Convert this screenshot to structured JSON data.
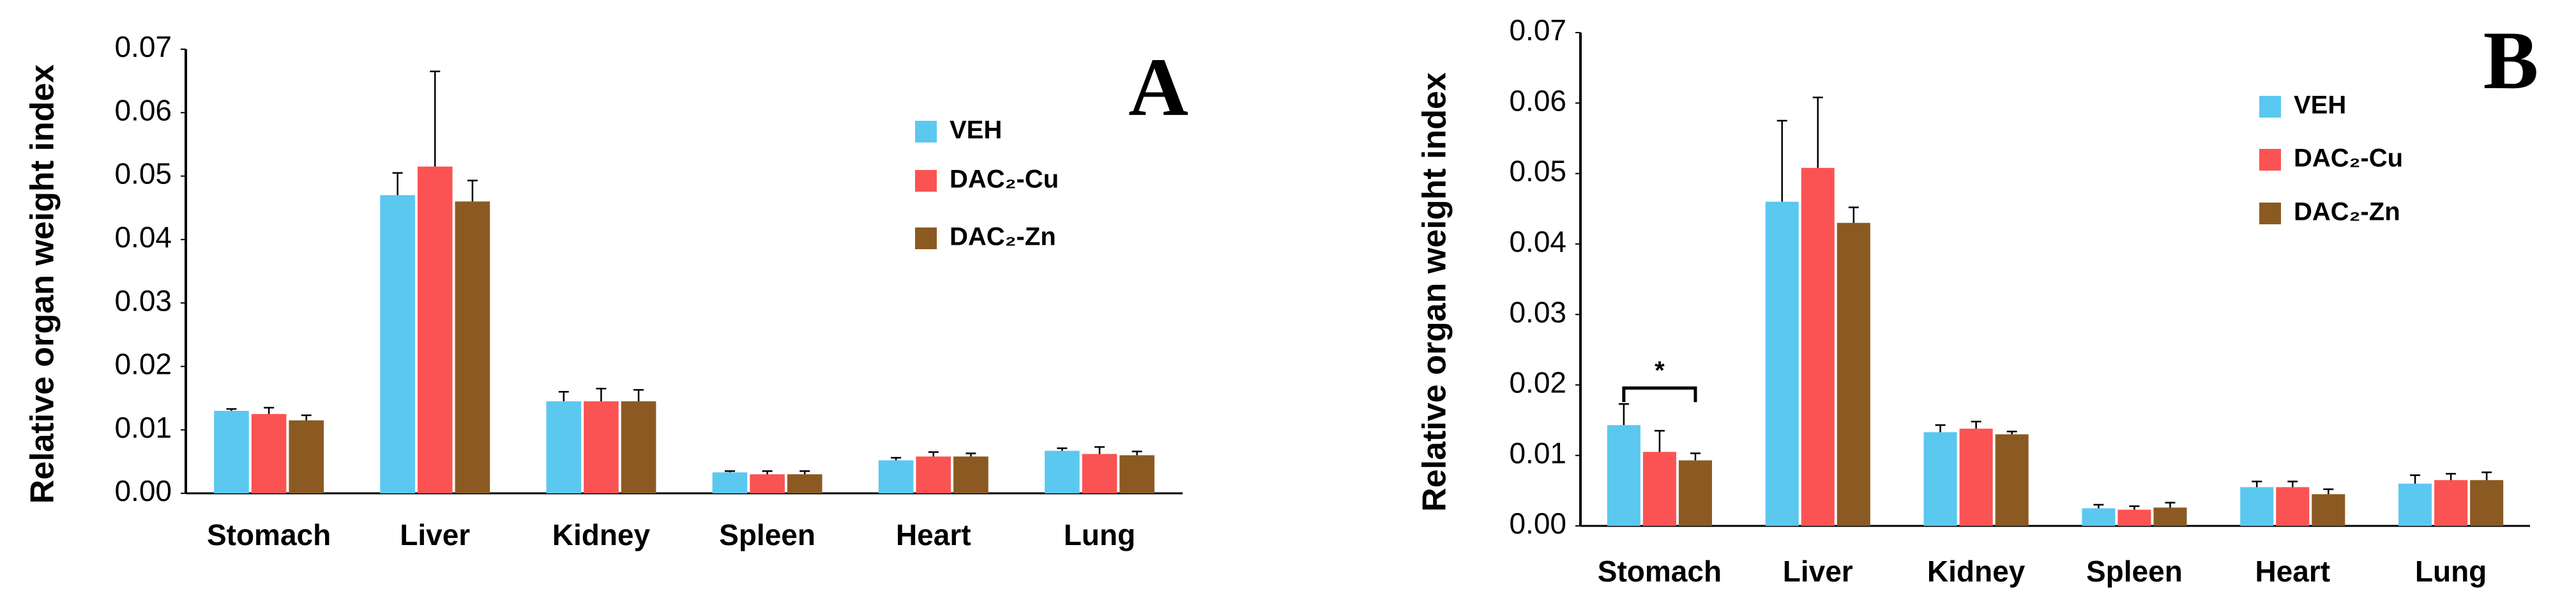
{
  "chart_data": [
    {
      "type": "bar",
      "panel_label": "A",
      "y_label": "Relative organ weight index",
      "categories": [
        "Stomach",
        "Liver",
        "Kidney",
        "Spleen",
        "Heart",
        "Lung"
      ],
      "series": [
        {
          "name": "VEH",
          "color": "#5bc8f0",
          "values": [
            0.013,
            0.047,
            0.0145,
            0.0033,
            0.0052,
            0.0067
          ],
          "errors": [
            0.0003,
            0.0035,
            0.0015,
            0.0002,
            0.0004,
            0.0004
          ]
        },
        {
          "name": "DAC₂-Cu",
          "color": "#fb5353",
          "values": [
            0.0125,
            0.0515,
            0.0145,
            0.003,
            0.0058,
            0.0062
          ],
          "errors": [
            0.001,
            0.015,
            0.002,
            0.0005,
            0.0007,
            0.0011
          ]
        },
        {
          "name": "DAC₂-Zn",
          "color": "#8b5a22",
          "values": [
            0.0115,
            0.046,
            0.0145,
            0.003,
            0.0058,
            0.006
          ],
          "errors": [
            0.0008,
            0.0033,
            0.0018,
            0.0005,
            0.0005,
            0.0006
          ]
        }
      ],
      "ylim": [
        0,
        0.07
      ],
      "yticks": [
        {
          "value": 0,
          "label": "0.00"
        },
        0.01,
        0.02,
        0.03,
        0.04,
        0.05,
        0.06,
        0.07
      ]
    },
    {
      "type": "bar",
      "panel_label": "B",
      "y_label": "Relative organ weight index",
      "annotation": "*",
      "categories": [
        "Stomach",
        "Liver",
        "Kidney",
        "Spleen",
        "Heart",
        "Lung"
      ],
      "series": [
        {
          "name": "VEH",
          "color": "#5bc8f0",
          "values": [
            0.0143,
            0.046,
            0.0133,
            0.0025,
            0.0055,
            0.006
          ],
          "errors": [
            0.003,
            0.0115,
            0.001,
            0.0005,
            0.0008,
            0.0012
          ]
        },
        {
          "name": "DAC₂-Cu",
          "color": "#fb5353",
          "values": [
            0.0105,
            0.0508,
            0.0138,
            0.0023,
            0.0055,
            0.0065
          ],
          "errors": [
            0.003,
            0.01,
            0.001,
            0.0005,
            0.0008,
            0.0009
          ]
        },
        {
          "name": "DAC₂-Zn",
          "color": "#8b5a22",
          "values": [
            0.0093,
            0.043,
            0.013,
            0.0026,
            0.0045,
            0.0065
          ],
          "errors": [
            0.001,
            0.0022,
            0.0004,
            0.0007,
            0.0007,
            0.0011
          ]
        }
      ],
      "ylim": [
        0,
        0.07
      ],
      "yticks": [
        {
          "value": 0,
          "label": "0.00"
        },
        0.01,
        0.02,
        0.03,
        0.04,
        0.05,
        0.06,
        0.07
      ]
    }
  ]
}
